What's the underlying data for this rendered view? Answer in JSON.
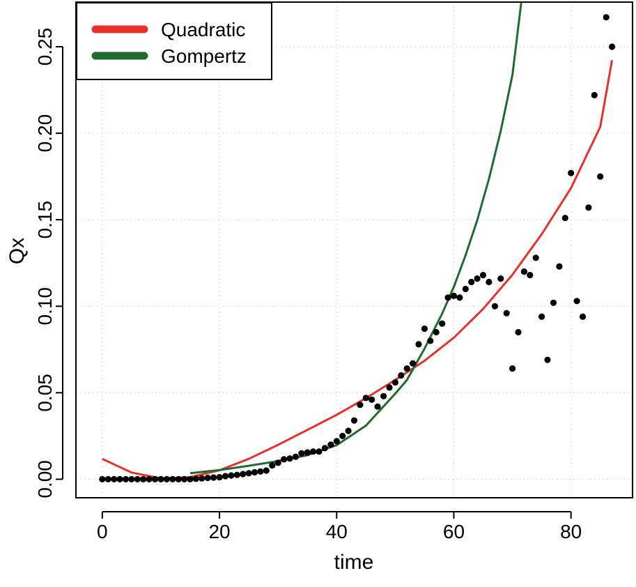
{
  "chart_data": {
    "type": "scatter",
    "xlabel": "time",
    "ylabel": "Qx",
    "xlim": [
      -4.5,
      90.5
    ],
    "ylim": [
      -0.0107,
      0.2758
    ],
    "x_ticks": [
      0,
      20,
      40,
      60,
      80
    ],
    "x_tick_labels": [
      "0",
      "20",
      "40",
      "60",
      "80"
    ],
    "y_ticks": [
      0.0,
      0.05,
      0.1,
      0.15,
      0.2,
      0.25
    ],
    "y_tick_labels": [
      "0.00",
      "0.05",
      "0.10",
      "0.15",
      "0.20",
      "0.25"
    ],
    "grid": true,
    "legend_position": "top-left",
    "colors": {
      "quadratic": "#e8302a",
      "gompertz": "#1e6b30",
      "points": "#000000"
    },
    "series": [
      {
        "name": "",
        "kind": "points",
        "x": [
          0,
          1,
          2,
          3,
          4,
          5,
          6,
          7,
          8,
          9,
          10,
          11,
          12,
          13,
          14,
          15,
          16,
          17,
          18,
          19,
          20,
          21,
          22,
          23,
          24,
          25,
          26,
          27,
          28,
          29,
          30,
          31,
          32,
          33,
          34,
          35,
          36,
          37,
          38,
          39,
          40,
          41,
          42,
          43,
          44,
          45,
          46,
          47,
          48,
          49,
          50,
          51,
          52,
          53,
          54,
          55,
          56,
          57,
          58,
          59,
          60,
          61,
          62,
          63,
          64,
          65,
          66,
          67,
          68,
          69,
          70,
          71,
          72,
          73,
          74,
          75,
          76,
          77,
          78,
          79,
          80,
          81,
          82,
          83,
          84,
          85,
          86,
          87
        ],
        "y": [
          0,
          0,
          0,
          0,
          0,
          0,
          0,
          0,
          0,
          0,
          0,
          0,
          0,
          0,
          0,
          0,
          0.0002,
          0.0005,
          0.0008,
          0.001,
          0.0012,
          0.0018,
          0.0022,
          0.0025,
          0.003,
          0.0035,
          0.004,
          0.0045,
          0.005,
          0.008,
          0.0095,
          0.0115,
          0.012,
          0.013,
          0.015,
          0.0155,
          0.016,
          0.016,
          0.018,
          0.02,
          0.022,
          0.025,
          0.028,
          0.034,
          0.043,
          0.047,
          0.046,
          0.042,
          0.048,
          0.053,
          0.056,
          0.06,
          0.064,
          0.067,
          0.078,
          0.087,
          0.08,
          0.085,
          0.09,
          0.105,
          0.106,
          0.105,
          0.11,
          0.114,
          0.116,
          0.118,
          0.114,
          0.1,
          0.116,
          0.096,
          0.064,
          0.085,
          0.12,
          0.118,
          0.128,
          0.094,
          0.069,
          0.102,
          0.123,
          0.151,
          0.177,
          0.103,
          0.094,
          0.157,
          0.222,
          0.175,
          0.267,
          0.25
        ]
      },
      {
        "name": "Quadratic",
        "kind": "line",
        "x": [
          0,
          5,
          10,
          15,
          20,
          25,
          30,
          35,
          40,
          45,
          50,
          55,
          60,
          65,
          70,
          75,
          80,
          85,
          87
        ],
        "y": [
          0.0118,
          0.0039,
          0.0005,
          0.0012,
          0.0052,
          0.0118,
          0.0199,
          0.0285,
          0.0372,
          0.0469,
          0.0574,
          0.0685,
          0.0818,
          0.0984,
          0.1182,
          0.1416,
          0.1683,
          0.2037,
          0.2422
        ]
      },
      {
        "name": "Gompertz",
        "kind": "line",
        "x": [
          15,
          20,
          25,
          30,
          35,
          40,
          45,
          50,
          52,
          55,
          58,
          60,
          62,
          64,
          66,
          68,
          70,
          71.5
        ],
        "y": [
          0.0035,
          0.0053,
          0.0078,
          0.0105,
          0.0139,
          0.0197,
          0.031,
          0.0495,
          0.0574,
          0.0755,
          0.0957,
          0.1112,
          0.1294,
          0.1497,
          0.1736,
          0.2013,
          0.2336,
          0.2753
        ]
      }
    ]
  }
}
